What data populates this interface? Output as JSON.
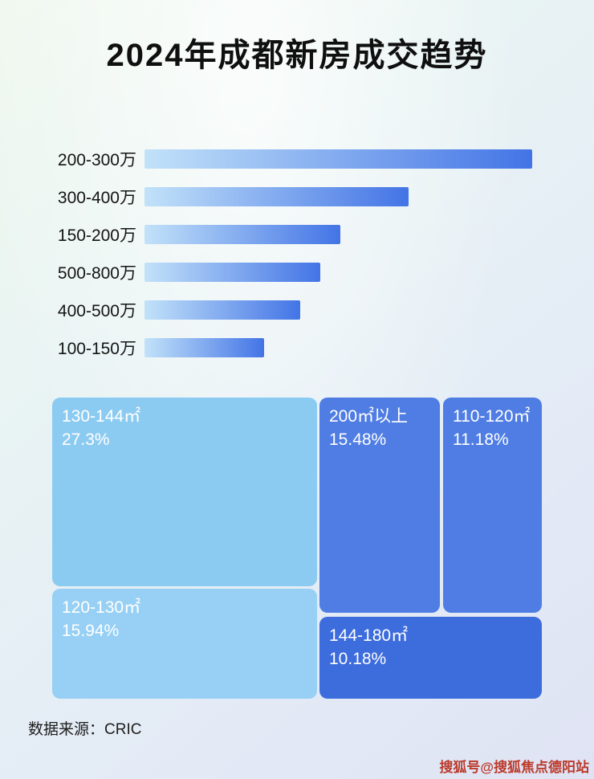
{
  "page": {
    "title": "2024年成都新房成交趋势",
    "source": "数据来源：CRIC",
    "watermark": "搜狐号@搜狐焦点德阳站"
  },
  "colors": {
    "bar_gradient_start": "#c2e2f9",
    "bar_gradient_end": "#4374e6",
    "treemap_light_1": "#8ccbf1",
    "treemap_light_2": "#97d0f4",
    "treemap_medium": "#4f7de3",
    "treemap_dark": "#3d6cdd",
    "watermark_text": "#bb3a2b"
  },
  "chart_data": [
    {
      "type": "bar",
      "orientation": "horizontal",
      "title": "2024年成都新房成交趋势",
      "categories": [
        "200-300万",
        "300-400万",
        "150-200万",
        "500-800万",
        "400-500万",
        "100-150万"
      ],
      "values": [
        97,
        66,
        49,
        44,
        39,
        30
      ],
      "xlabel": "",
      "ylabel": "",
      "value_scale": "relative bar length, percent of track width (no numeric axis shown in image)",
      "grid": false,
      "legend": false
    },
    {
      "type": "treemap",
      "title": "",
      "items": [
        {
          "label": "130-144㎡",
          "percent": "27.3%",
          "value": 27.3
        },
        {
          "label": "200㎡以上",
          "percent": "15.48%",
          "value": 15.48
        },
        {
          "label": "110-120㎡",
          "percent": "11.18%",
          "value": 11.18
        },
        {
          "label": "120-130㎡",
          "percent": "15.94%",
          "value": 15.94
        },
        {
          "label": "144-180㎡",
          "percent": "10.18%",
          "value": 10.18
        }
      ]
    }
  ]
}
